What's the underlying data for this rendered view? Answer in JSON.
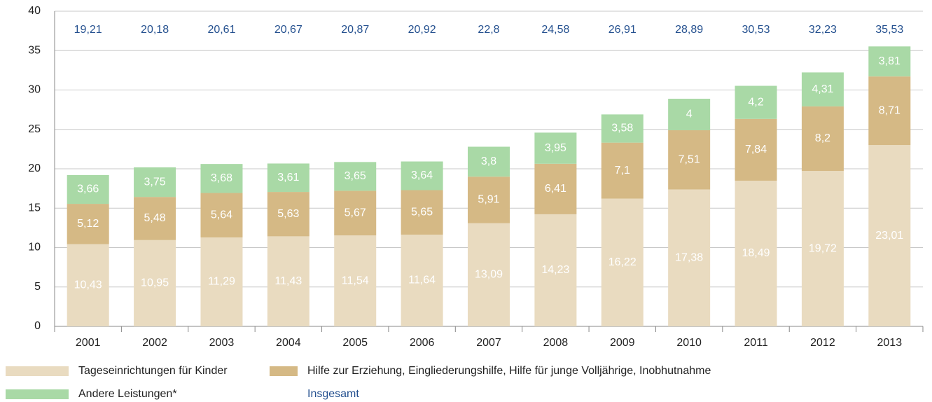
{
  "chart_data": {
    "type": "stacked_bar",
    "categories": [
      "2001",
      "2002",
      "2003",
      "2004",
      "2005",
      "2006",
      "2007",
      "2008",
      "2009",
      "2010",
      "2011",
      "2012",
      "2013"
    ],
    "series": [
      {
        "name": "Tageseinrichtungen für Kinder",
        "color": "#e9dbc0",
        "values": [
          10.43,
          10.95,
          11.29,
          11.43,
          11.54,
          11.64,
          13.09,
          14.23,
          16.22,
          17.38,
          18.49,
          19.72,
          23.01
        ],
        "value_labels": [
          "10,43",
          "10,95",
          "11,29",
          "11,43",
          "11,54",
          "11,64",
          "13,09",
          "14,23",
          "16,22",
          "17,38",
          "18,49",
          "19,72",
          "23,01"
        ]
      },
      {
        "name": "Hilfe zur Erziehung, Eingliederungshilfe, Hilfe für junge Volljährige, Inobhutnahme",
        "color": "#d5b985",
        "values": [
          5.12,
          5.48,
          5.64,
          5.63,
          5.67,
          5.65,
          5.91,
          6.41,
          7.1,
          7.51,
          7.84,
          8.2,
          8.71
        ],
        "value_labels": [
          "5,12",
          "5,48",
          "5,64",
          "5,63",
          "5,67",
          "5,65",
          "5,91",
          "6,41",
          "7,1",
          "7,51",
          "7,84",
          "8,2",
          "8,71"
        ]
      },
      {
        "name": "Andere Leistungen*",
        "color": "#a9d9a6",
        "values": [
          3.66,
          3.75,
          3.68,
          3.61,
          3.65,
          3.64,
          3.8,
          3.95,
          3.58,
          4,
          4.2,
          4.31,
          3.81
        ],
        "value_labels": [
          "3,66",
          "3,75",
          "3,68",
          "3,61",
          "3,65",
          "3,64",
          "3,8",
          "3,95",
          "3,58",
          "4",
          "4,2",
          "4,31",
          "3,81"
        ]
      }
    ],
    "totals": {
      "name": "Insgesamt",
      "color": "#24508f",
      "values": [
        19.21,
        20.18,
        20.61,
        20.67,
        20.87,
        20.92,
        22.8,
        24.58,
        26.91,
        28.89,
        30.53,
        32.23,
        35.53
      ],
      "value_labels": [
        "19,21",
        "20,18",
        "20,61",
        "20,67",
        "20,87",
        "20,92",
        "22,8",
        "24,58",
        "26,91",
        "28,89",
        "30,53",
        "32,23",
        "35,53"
      ]
    },
    "ylim": [
      0,
      40
    ],
    "yticks": [
      0,
      5,
      10,
      15,
      20,
      25,
      30,
      35,
      40
    ],
    "grid": true
  }
}
